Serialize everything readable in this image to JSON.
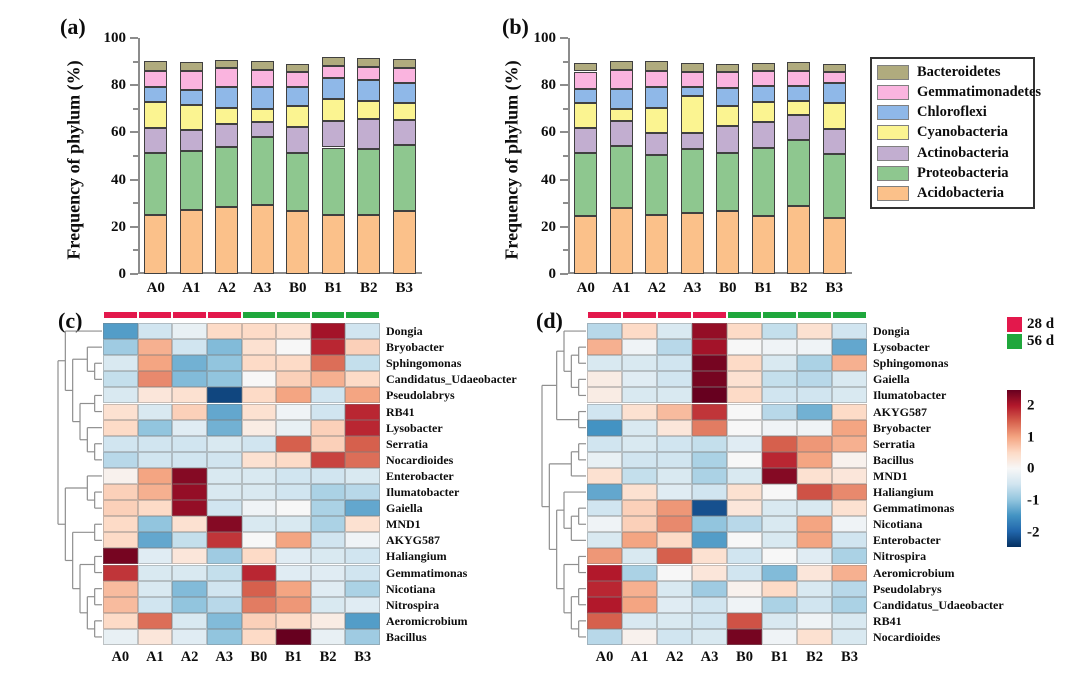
{
  "panels": {
    "a": {
      "label": "(a)"
    },
    "b": {
      "label": "(b)"
    },
    "c": {
      "label": "(c)"
    },
    "d": {
      "label": "(d)"
    }
  },
  "phylum_legend": {
    "items": [
      {
        "label": "Bacteroidetes",
        "color": "#b0ab7e"
      },
      {
        "label": "Gemmatimonadetes",
        "color": "#fab4df"
      },
      {
        "label": "Chloroflexi",
        "color": "#8fb8e8"
      },
      {
        "label": "Cyanobacteria",
        "color": "#fbf491"
      },
      {
        "label": "Actinobacteria",
        "color": "#c2aed0"
      },
      {
        "label": "Proteobacteria",
        "color": "#8ec78f"
      },
      {
        "label": "Acidobacteria",
        "color": "#fbc18a"
      }
    ]
  },
  "time_legend": {
    "items": [
      {
        "label": "28 d",
        "color": "#e3184c"
      },
      {
        "label": "56 d",
        "color": "#1fa73c"
      }
    ]
  },
  "colorbar": {
    "range": [
      -2.45,
      2.5
    ],
    "ticks": [
      {
        "label": "2",
        "value": 2
      },
      {
        "label": "1",
        "value": 1
      },
      {
        "label": "0",
        "value": 0
      },
      {
        "label": "-1",
        "value": -1
      },
      {
        "label": "-2",
        "value": -2
      }
    ]
  },
  "chart_data": [
    {
      "id": "a",
      "type": "bar",
      "stacked": true,
      "ylabel": "Frequency of phylum (%)",
      "ylim": [
        0,
        100
      ],
      "yticks": [
        0,
        20,
        40,
        60,
        80,
        100
      ],
      "categories": [
        "A0",
        "A1",
        "A2",
        "A3",
        "B0",
        "B1",
        "B2",
        "B3"
      ],
      "series": [
        {
          "name": "Acidobacteria",
          "color": "#fbc18a",
          "values": [
            24.8,
            27.2,
            28.4,
            29.1,
            26.7,
            25.2,
            24.8,
            26.7
          ]
        },
        {
          "name": "Proteobacteria",
          "color": "#8ec78f",
          "values": [
            26.3,
            25.0,
            25.5,
            28.8,
            24.6,
            28.4,
            28.1,
            27.9
          ]
        },
        {
          "name": "Actinobacteria",
          "color": "#c2aed0",
          "values": [
            10.6,
            8.8,
            9.6,
            6.6,
            11.1,
            11.4,
            12.6,
            10.6
          ]
        },
        {
          "name": "Cyanobacteria",
          "color": "#fbf491",
          "values": [
            11.3,
            10.6,
            6.7,
            5.3,
            8.8,
            9.0,
            8.0,
            7.1
          ]
        },
        {
          "name": "Chloroflexi",
          "color": "#8fb8e8",
          "values": [
            6.1,
            6.4,
            8.9,
            9.3,
            7.9,
            9.0,
            8.8,
            8.8
          ]
        },
        {
          "name": "Gemmatimonadetes",
          "color": "#fab4df",
          "values": [
            7.1,
            8.2,
            8.1,
            7.4,
            6.3,
            5.2,
            5.6,
            6.1
          ]
        },
        {
          "name": "Bacteroidetes",
          "color": "#b0ab7e",
          "values": [
            3.9,
            3.6,
            3.3,
            3.9,
            3.7,
            3.7,
            3.6,
            3.9
          ]
        }
      ]
    },
    {
      "id": "b",
      "type": "bar",
      "stacked": true,
      "ylabel": "Frequency of phylum (%)",
      "ylim": [
        0,
        100
      ],
      "yticks": [
        0,
        20,
        40,
        60,
        80,
        100
      ],
      "categories": [
        "A0",
        "A1",
        "A2",
        "A3",
        "B0",
        "B1",
        "B2",
        "B3"
      ],
      "series": [
        {
          "name": "Acidobacteria",
          "color": "#fbc18a",
          "values": [
            24.4,
            27.9,
            24.8,
            25.8,
            26.7,
            24.4,
            28.7,
            23.8
          ]
        },
        {
          "name": "Proteobacteria",
          "color": "#8ec78f",
          "values": [
            26.7,
            26.3,
            25.6,
            27.0,
            24.6,
            28.8,
            28.0,
            27.0
          ]
        },
        {
          "name": "Actinobacteria",
          "color": "#c2aed0",
          "values": [
            10.6,
            10.8,
            9.5,
            6.8,
            11.4,
            11.3,
            10.7,
            10.5
          ]
        },
        {
          "name": "Cyanobacteria",
          "color": "#fbf491",
          "values": [
            10.6,
            4.8,
            10.3,
            15.9,
            8.5,
            8.5,
            6.1,
            11.3
          ]
        },
        {
          "name": "Chloroflexi",
          "color": "#8fb8e8",
          "values": [
            6.0,
            8.5,
            8.9,
            3.9,
            7.5,
            6.7,
            6.2,
            8.3
          ]
        },
        {
          "name": "Gemmatimonadetes",
          "color": "#fab4df",
          "values": [
            7.5,
            8.2,
            7.0,
            6.4,
            7.1,
            6.4,
            6.5,
            4.9
          ]
        },
        {
          "name": "Bacteroidetes",
          "color": "#b0ab7e",
          "values": [
            3.8,
            3.6,
            4.0,
            3.6,
            3.3,
            3.5,
            3.7,
            3.3
          ]
        }
      ]
    },
    {
      "id": "c",
      "type": "heatmap",
      "columns": [
        "A0",
        "A1",
        "A2",
        "A3",
        "B0",
        "B1",
        "B2",
        "B3"
      ],
      "col_groups": [
        {
          "label": "28 d",
          "color": "#e3184c",
          "span": 4
        },
        {
          "label": "56 d",
          "color": "#1fa73c",
          "span": 4
        }
      ],
      "value_range": [
        -2.5,
        2.5
      ],
      "rows": [
        "Dongia",
        "Bryobacter",
        "Sphingomonas",
        "Candidatus_Udaeobacter",
        "Pseudolabrys",
        "RB41",
        "Lysobacter",
        "Serratia",
        "Nocardioides",
        "Enterobacter",
        "Ilumatobacter",
        "Gaiella",
        "MND1",
        "AKYG587",
        "Haliangium",
        "Gemmatimonas",
        "Nicotiana",
        "Nitrospira",
        "Aeromicrobium",
        "Bacillus"
      ],
      "values": [
        [
          -1.4,
          -0.5,
          -0.2,
          0.5,
          0.5,
          0.4,
          2.1,
          -0.5
        ],
        [
          -0.9,
          0.9,
          -0.5,
          -1.1,
          0.4,
          0.0,
          1.9,
          0.6
        ],
        [
          -0.4,
          1.0,
          -1.2,
          -1.0,
          0.5,
          0.5,
          1.4,
          -0.6
        ],
        [
          -0.6,
          1.2,
          -1.1,
          -1.0,
          0.0,
          0.6,
          0.9,
          0.5
        ],
        [
          -0.4,
          0.3,
          0.4,
          -2.3,
          0.5,
          1.0,
          -0.5,
          1.0
        ],
        [
          0.4,
          -0.4,
          0.6,
          -1.3,
          0.4,
          -0.1,
          -0.5,
          1.9
        ],
        [
          0.5,
          -1.0,
          -0.3,
          -1.2,
          0.2,
          -0.2,
          0.6,
          1.9
        ],
        [
          -0.5,
          -0.5,
          -0.5,
          -0.4,
          -0.5,
          1.5,
          0.6,
          1.5
        ],
        [
          -0.7,
          -0.5,
          -0.5,
          -0.5,
          0.4,
          0.5,
          1.7,
          1.4
        ],
        [
          0.1,
          1.0,
          2.3,
          -0.4,
          -0.4,
          -0.5,
          -0.5,
          -0.4
        ],
        [
          0.6,
          0.9,
          2.2,
          -0.4,
          -0.4,
          -0.5,
          -0.8,
          -0.7
        ],
        [
          0.6,
          0.5,
          2.2,
          -0.5,
          -0.1,
          0.0,
          -0.8,
          -1.3
        ],
        [
          0.5,
          -1.0,
          0.4,
          2.3,
          -0.4,
          -0.4,
          -0.8,
          0.4
        ],
        [
          0.5,
          -1.3,
          -0.6,
          1.8,
          0.0,
          1.0,
          -0.5,
          -0.1
        ],
        [
          2.4,
          -0.3,
          0.3,
          -0.9,
          0.5,
          -0.3,
          -0.4,
          -0.5
        ],
        [
          1.8,
          -0.4,
          -0.4,
          -0.6,
          1.9,
          -0.3,
          -0.3,
          -0.5
        ],
        [
          0.8,
          -0.4,
          -1.1,
          -0.5,
          1.5,
          1.0,
          -0.3,
          -0.8
        ],
        [
          0.8,
          -0.5,
          -1.0,
          -0.7,
          1.3,
          1.1,
          -0.4,
          -0.3
        ],
        [
          0.5,
          1.4,
          -0.4,
          -1.1,
          0.6,
          0.5,
          0.2,
          -1.4
        ],
        [
          -0.2,
          0.3,
          -0.3,
          -1.0,
          0.5,
          2.5,
          -0.2,
          -0.9
        ]
      ],
      "dendrogram": [
        [
          0,
          [
            [
              1,
              [
                2,
                3
              ]
            ],
            [
              [
                4,
                5
              ],
              [
                6,
                [
                  7,
                  8
                ]
              ]
            ]
          ]
        ],
        [
          [
            9,
            [
              10,
              11
            ]
          ],
          [
            [
              12,
              13
            ],
            [
              [
                14,
                15
              ],
              [
                [
                  16,
                  17
                ],
                [
                  18,
                  19
                ]
              ]
            ]
          ]
        ]
      ]
    },
    {
      "id": "d",
      "type": "heatmap",
      "columns": [
        "A0",
        "A1",
        "A2",
        "A3",
        "B0",
        "B1",
        "B2",
        "B3"
      ],
      "col_groups": [
        {
          "label": "28 d",
          "color": "#e3184c",
          "span": 4
        },
        {
          "label": "56 d",
          "color": "#1fa73c",
          "span": 4
        }
      ],
      "value_range": [
        -2.5,
        2.5
      ],
      "rows": [
        "Dongia",
        "Lysobacter",
        "Sphingomonas",
        "Gaiella",
        "Ilumatobacter",
        "AKYG587",
        "Bryobacter",
        "Serratia",
        "Bacillus",
        "MND1",
        "Haliangium",
        "Gemmatimonas",
        "Nicotiana",
        "Enterobacter",
        "Nitrospira",
        "Aeromicrobium",
        "Pseudolabrys",
        "Candidatus_Udaeobacter",
        "RB41",
        "Nocardioides"
      ],
      "values": [
        [
          -0.7,
          0.5,
          -0.4,
          2.2,
          0.5,
          -0.6,
          0.4,
          -0.5
        ],
        [
          0.9,
          -0.1,
          -0.7,
          2.1,
          0.0,
          -0.1,
          -0.1,
          -1.3
        ],
        [
          -0.4,
          -0.4,
          -0.5,
          2.4,
          0.5,
          -0.4,
          -0.8,
          0.9
        ],
        [
          0.2,
          -0.3,
          -0.5,
          2.4,
          0.4,
          -0.6,
          -0.7,
          -0.4
        ],
        [
          0.2,
          -0.4,
          -0.4,
          2.5,
          0.5,
          -0.5,
          -0.5,
          -0.4
        ],
        [
          -0.5,
          0.4,
          0.8,
          1.8,
          0.0,
          -0.7,
          -1.2,
          0.5
        ],
        [
          -1.5,
          -0.4,
          0.3,
          1.3,
          0.0,
          -0.1,
          -0.1,
          1.0
        ],
        [
          -0.5,
          -0.4,
          -0.5,
          -0.6,
          -0.3,
          1.5,
          1.1,
          0.9
        ],
        [
          -0.2,
          -0.5,
          -0.5,
          -0.8,
          0.0,
          1.9,
          1.0,
          0.1
        ],
        [
          0.4,
          -0.6,
          -0.4,
          -0.8,
          -0.4,
          2.3,
          0.4,
          0.3
        ],
        [
          -1.3,
          0.4,
          -0.3,
          -0.5,
          0.4,
          0.0,
          1.6,
          1.2
        ],
        [
          -0.5,
          0.6,
          1.1,
          -2.2,
          0.3,
          -0.4,
          -0.4,
          0.4
        ],
        [
          -0.1,
          0.6,
          1.2,
          -1.0,
          -0.7,
          -0.4,
          1.0,
          -0.1
        ],
        [
          -0.4,
          1.0,
          0.5,
          -1.4,
          0.0,
          -0.4,
          1.0,
          -0.5
        ],
        [
          1.1,
          -0.4,
          1.5,
          0.4,
          -0.5,
          0.0,
          -0.3,
          -0.8
        ],
        [
          2.0,
          -0.8,
          0.0,
          0.3,
          -0.5,
          -1.1,
          0.3,
          0.9
        ],
        [
          1.9,
          0.9,
          -0.4,
          -0.9,
          0.1,
          0.5,
          -0.4,
          -0.7
        ],
        [
          2.0,
          1.0,
          -0.3,
          -0.5,
          -0.1,
          -0.8,
          -0.5,
          -0.8
        ],
        [
          1.5,
          -0.4,
          -0.4,
          -0.5,
          1.6,
          -0.4,
          -0.1,
          -0.4
        ],
        [
          -0.7,
          0.1,
          -0.5,
          -0.4,
          2.4,
          -0.1,
          0.4,
          -0.4
        ]
      ],
      "dendrogram": [
        [
          [
            0,
            [
              [
                1,
                2
              ],
              [
                3,
                4
              ]
            ]
          ],
          [
            5,
            6
          ]
        ],
        [
          [
            [
              7,
              8
            ],
            9
          ],
          [
            [
              10,
              [
                [
                  11,
                  12
                ],
                13
              ]
            ],
            [
              [
                14,
                15
              ],
              [
                [
                  16,
                  17
                ],
                [
                  18,
                  19
                ]
              ]
            ]
          ]
        ]
      ]
    }
  ]
}
